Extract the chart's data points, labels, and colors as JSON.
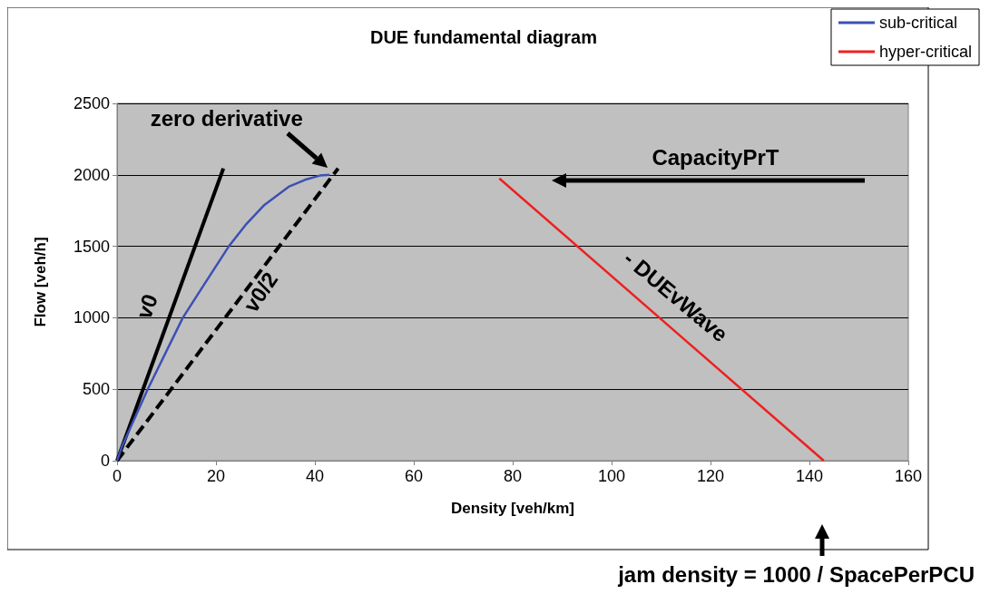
{
  "chart_data": {
    "type": "line",
    "title": "DUE fundamental diagram",
    "xlabel": "Density [veh/km]",
    "ylabel": "Flow [veh/h]",
    "xlim": [
      0,
      160
    ],
    "xticks": [
      0,
      20,
      40,
      60,
      80,
      100,
      120,
      140,
      160
    ],
    "ylim": [
      0,
      2500
    ],
    "yticks": [
      0,
      500,
      1000,
      1500,
      2000,
      2500
    ],
    "grid": "y",
    "legend": "top right",
    "marker": "none",
    "series": [
      {
        "name": "sub-critical",
        "color": "#3c50b4",
        "x": [
          0,
          1,
          6.2,
          13.3,
          17,
          22.6,
          26,
          29.8,
          34.7,
          38,
          41,
          43
        ],
        "values": [
          0,
          100,
          500,
          1000,
          1200,
          1500,
          1650,
          1790,
          1917,
          1965,
          1995,
          2000
        ]
      },
      {
        "name": "hyper-critical",
        "color": "#ee2020",
        "x": [
          77.3,
          142.9
        ],
        "values": [
          1975,
          0
        ]
      },
      {
        "color": "#000000",
        "x": [
          0,
          21.5
        ],
        "values": [
          0,
          2045
        ],
        "line_style": "solid"
      },
      {
        "color": "#000000",
        "x": [
          0,
          44.7
        ],
        "values": [
          0,
          2045
        ],
        "line_style": "dashed"
      }
    ],
    "annotations": [
      {
        "text": "zero derivative",
        "x": 44,
        "y": 2000
      },
      "CapacityPrT",
      "jam density = 1000 / SpacePerPCU",
      "v0",
      "v0/2",
      "- DUEvWave"
    ]
  }
}
